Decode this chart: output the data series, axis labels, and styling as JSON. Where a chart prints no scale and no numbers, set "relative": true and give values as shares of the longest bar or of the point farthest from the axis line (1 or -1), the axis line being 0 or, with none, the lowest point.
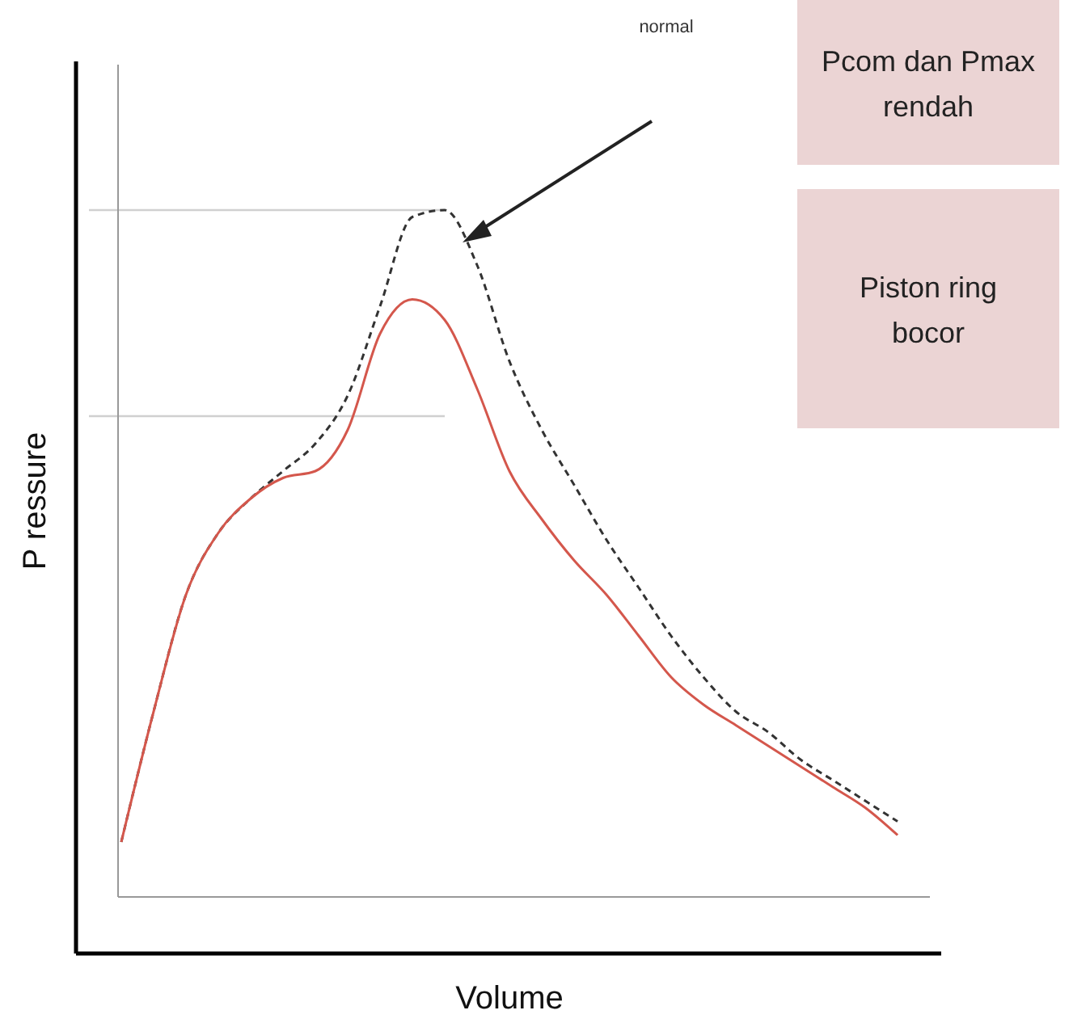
{
  "chart_data": {
    "type": "line",
    "relative": true,
    "xlabel": "Volume",
    "ylabel": "P ressure",
    "categories": [
      null,
      null,
      null,
      null,
      null,
      null,
      null,
      null,
      null,
      null,
      null,
      null,
      null,
      null,
      null,
      null,
      null,
      null,
      null,
      null,
      null,
      null,
      null,
      null,
      null
    ],
    "series": [
      {
        "color": "#333333",
        "line_style": "dashed",
        "values": [
          0.08,
          0.27,
          0.44,
          0.53,
          0.58,
          0.62,
          0.66,
          0.73,
          0.86,
          0.99,
          1,
          0.92,
          0.78,
          0.68,
          0.6,
          0.52,
          0.45,
          0.38,
          0.32,
          0.27,
          0.24,
          0.2,
          0.17,
          0.14,
          0.11
        ]
      },
      {
        "color": "#d4574c",
        "line_style": "solid",
        "values": [
          0.08,
          0.27,
          0.44,
          0.53,
          0.58,
          0.61,
          0.62,
          0.68,
          0.82,
          0.87,
          0.84,
          0.74,
          0.62,
          0.55,
          0.49,
          0.44,
          0.38,
          0.32,
          0.28,
          0.25,
          0.22,
          0.19,
          0.16,
          0.13,
          0.09
        ]
      }
    ],
    "ref_lines": [
      {
        "axis": "y",
        "value": 1,
        "color": "#d0d0d0"
      },
      {
        "axis": "y",
        "value": 0.7,
        "color": "#d0d0d0"
      }
    ],
    "annotations": [
      "normal",
      "Pcom dan Pmax rendah",
      "Piston ring bocor"
    ],
    "marker": "none"
  }
}
